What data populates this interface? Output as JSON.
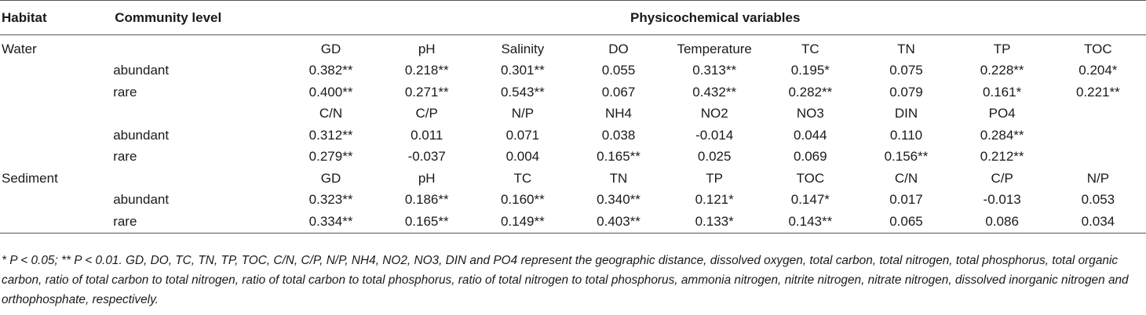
{
  "header": {
    "habitat": "Habitat",
    "community_level": "Community level",
    "variables": "Physicochemical variables"
  },
  "rows": [
    {
      "habitat": "Water",
      "level": "",
      "cells": [
        "GD",
        "pH",
        "Salinity",
        "DO",
        "Temperature",
        "TC",
        "TN",
        "TP",
        "TOC"
      ]
    },
    {
      "habitat": "",
      "level": "abundant",
      "cells": [
        "0.382**",
        "0.218**",
        "0.301**",
        "0.055",
        "0.313**",
        "0.195*",
        "0.075",
        "0.228**",
        "0.204*"
      ]
    },
    {
      "habitat": "",
      "level": "rare",
      "cells": [
        "0.400**",
        "0.271**",
        "0.543**",
        "0.067",
        "0.432**",
        "0.282**",
        "0.079",
        "0.161*",
        "0.221**"
      ]
    },
    {
      "habitat": "",
      "level": "",
      "cells": [
        "C/N",
        "C/P",
        "N/P",
        "NH4",
        "NO2",
        "NO3",
        "DIN",
        "PO4",
        ""
      ]
    },
    {
      "habitat": "",
      "level": "abundant",
      "cells": [
        "0.312**",
        "0.011",
        "0.071",
        "0.038",
        "-0.014",
        "0.044",
        "0.110",
        "0.284**",
        ""
      ]
    },
    {
      "habitat": "",
      "level": "rare",
      "cells": [
        "0.279**",
        "-0.037",
        "0.004",
        "0.165**",
        "0.025",
        "0.069",
        "0.156**",
        "0.212**",
        ""
      ]
    },
    {
      "habitat": "Sediment",
      "level": "",
      "cells": [
        "GD",
        "pH",
        "TC",
        "TN",
        "TP",
        "TOC",
        "C/N",
        "C/P",
        "N/P"
      ]
    },
    {
      "habitat": "",
      "level": "abundant",
      "cells": [
        "0.323**",
        "0.186**",
        "0.160**",
        "0.340**",
        "0.121*",
        "0.147*",
        "0.017",
        "-0.013",
        "0.053"
      ]
    },
    {
      "habitat": "",
      "level": "rare",
      "cells": [
        "0.334**",
        "0.165**",
        "0.149**",
        "0.403**",
        "0.133*",
        "0.143**",
        "0.065",
        "0.086",
        "0.034"
      ]
    }
  ],
  "footnote": "* P < 0.05; ** P < 0.01. GD, DO, TC, TN, TP, TOC, C/N, C/P, N/P, NH4, NO2, NO3, DIN and PO4 represent the geographic distance, dissolved oxygen, total carbon, total nitrogen, total phosphorus, total organic carbon, ratio of total carbon to total nitrogen, ratio of total carbon to total phosphorus, ratio of total nitrogen to total phosphorus, ammonia nitrogen, nitrite nitrogen, nitrate nitrogen, dissolved inorganic nitrogen and orthophosphate, respectively."
}
